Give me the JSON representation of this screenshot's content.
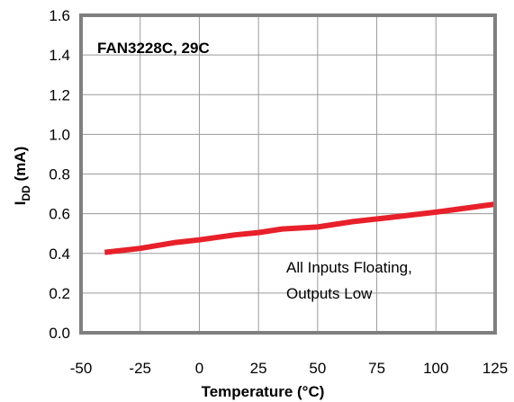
{
  "chart_data": {
    "type": "line",
    "title": "",
    "xlabel": "Temperature (°C)",
    "ylabel_main": "I",
    "ylabel_sub": "DD",
    "ylabel_unit": " (mA)",
    "xlim": [
      -50,
      125
    ],
    "ylim": [
      0.0,
      1.6
    ],
    "xticks": [
      -50,
      -25,
      0,
      25,
      50,
      75,
      100,
      125
    ],
    "xtick_labels": [
      "-50",
      "-25",
      "0",
      "25",
      "50",
      "75",
      "100",
      "125"
    ],
    "yticks": [
      0.0,
      0.2,
      0.4,
      0.6,
      0.8,
      1.0,
      1.2,
      1.4,
      1.6
    ],
    "ytick_labels": [
      "0.0",
      "0.2",
      "0.4",
      "0.6",
      "0.8",
      "1.0",
      "1.2",
      "1.4",
      "1.6"
    ],
    "grid": true,
    "annotations": [
      {
        "text": "FAN3228C, 29C",
        "bold": true
      },
      {
        "text": "All Inputs Floating,",
        "bold": false
      },
      {
        "text": "Outputs Low",
        "bold": false
      }
    ],
    "series": [
      {
        "color": "#e8202a",
        "x": [
          -40,
          -25,
          -10,
          0,
          15,
          25,
          35,
          50,
          65,
          80,
          100,
          125
        ],
        "y": [
          0.405,
          0.425,
          0.455,
          0.468,
          0.493,
          0.505,
          0.523,
          0.533,
          0.56,
          0.58,
          0.608,
          0.648
        ]
      }
    ]
  }
}
